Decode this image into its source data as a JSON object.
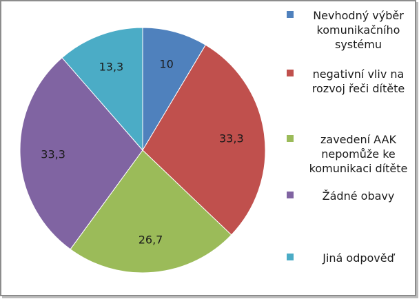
{
  "chart_data": {
    "type": "pie",
    "slices": [
      {
        "label": "Nevhodný výběr komunikačního systému",
        "value": 10,
        "display": "10",
        "color": "#4f81bd"
      },
      {
        "label": "negativní vliv na rozvoj řeči dítěte",
        "value": 33.3,
        "display": "33,3",
        "color": "#c0504d"
      },
      {
        "label": "zavedení AAK nepomůže ke komunikaci dítěte",
        "value": 26.7,
        "display": "26,7",
        "color": "#9bbb59"
      },
      {
        "label": "Žádné obavy",
        "value": 33.3,
        "display": "33,3",
        "color": "#8064a2"
      },
      {
        "label": "Jiná odpověď",
        "value": 13.3,
        "display": "13,3",
        "color": "#4bacc6"
      }
    ],
    "start_angle": "12 o'clock",
    "direction": "clockwise",
    "legend_position": "right"
  }
}
